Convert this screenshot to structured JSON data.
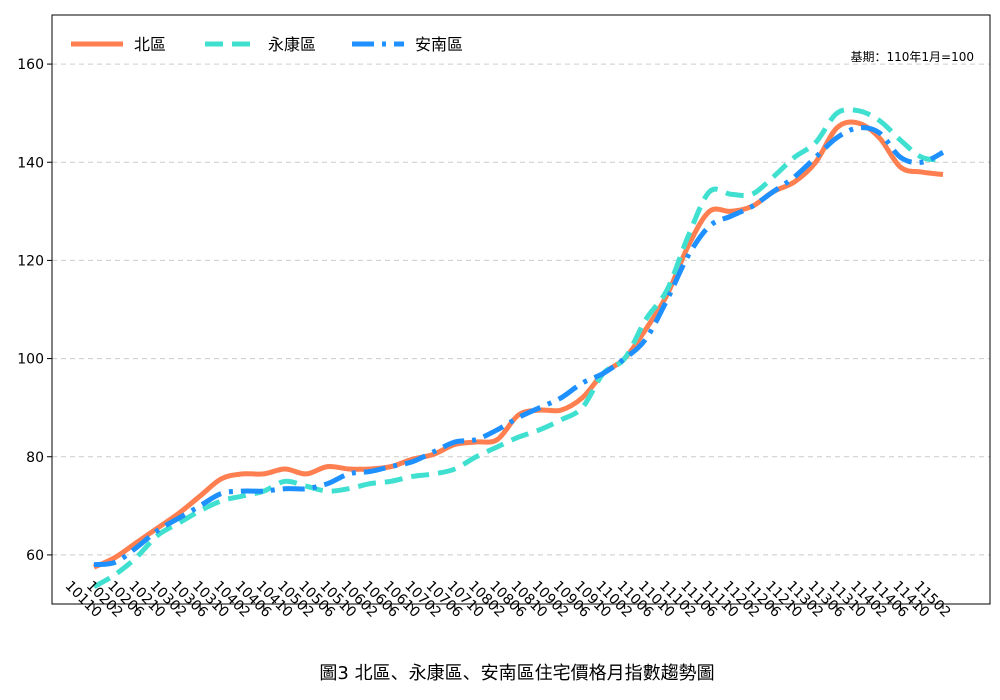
{
  "chart_data": {
    "type": "line",
    "title": "",
    "xlabel": "",
    "ylabel": "",
    "caption": "圖3  北區、永康區、安南區住宅價格月指數趨勢圖",
    "note": "基期：110年1月=100",
    "ylim": [
      50,
      170
    ],
    "yticks": [
      60,
      80,
      100,
      120,
      140,
      160
    ],
    "grid": "horizontal dashed",
    "legend_position": "top-left",
    "x": [
      "10110",
      "10202",
      "10206",
      "10210",
      "10302",
      "10306",
      "10310",
      "10402",
      "10406",
      "10410",
      "10502",
      "10506",
      "10510",
      "10602",
      "10606",
      "10610",
      "10702",
      "10706",
      "10710",
      "10802",
      "10806",
      "10810",
      "10902",
      "10906",
      "10910",
      "11002",
      "11006",
      "11010",
      "11102",
      "11106",
      "11110",
      "11202",
      "11206",
      "11210",
      "11302",
      "11306",
      "11310",
      "11402",
      "11406",
      "11410",
      "11502"
    ],
    "series": [
      {
        "name": "北區",
        "color": "#FF7F50",
        "dash": "solid",
        "values": [
          57.5,
          59.5,
          62.5,
          65.5,
          68.5,
          72,
          75.5,
          76.5,
          76.5,
          77.5,
          76.5,
          78,
          77.5,
          77.5,
          78,
          79.5,
          80.5,
          82.5,
          83,
          83.5,
          88.5,
          89.5,
          89.5,
          92,
          97,
          100,
          106,
          113,
          123,
          130,
          130,
          131,
          134,
          136,
          140,
          147,
          148,
          145,
          139,
          138,
          137.5
        ]
      },
      {
        "name": "永康區",
        "color": "#40E0D0",
        "dash": "dashed",
        "values": [
          53.5,
          56,
          59.5,
          64,
          66.5,
          69,
          71,
          72,
          73,
          75,
          74,
          73,
          73.5,
          74.5,
          75,
          76,
          76.5,
          77.5,
          80,
          82,
          84,
          85.5,
          87.5,
          90,
          97,
          100,
          108,
          114,
          125,
          134,
          133.5,
          133.5,
          137,
          141,
          144,
          150,
          150.5,
          148.5,
          144.5,
          141,
          140.5
        ]
      },
      {
        "name": "安南區",
        "color": "#1E90FF",
        "dash": "dashdot",
        "values": [
          58,
          58.5,
          61.5,
          65,
          67.5,
          70,
          72.5,
          73,
          73,
          73.5,
          73.5,
          74.5,
          76.5,
          77,
          78,
          79,
          81,
          83,
          83.5,
          85.5,
          88,
          90,
          92,
          95,
          97,
          100,
          104,
          112,
          121,
          127,
          129,
          131,
          134,
          137,
          141,
          145,
          147,
          146,
          141,
          140,
          142
        ]
      }
    ]
  }
}
